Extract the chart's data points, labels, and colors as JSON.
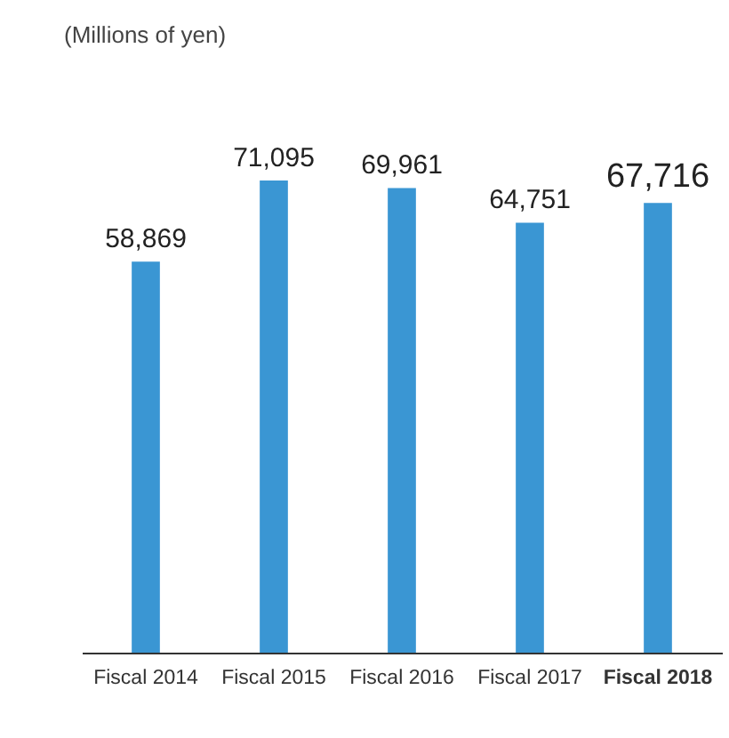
{
  "chart_data": {
    "type": "bar",
    "subtitle": "(Millions of yen)",
    "categories": [
      "Fiscal 2014",
      "Fiscal 2015",
      "Fiscal 2016",
      "Fiscal 2017",
      "Fiscal 2018"
    ],
    "values": [
      58869,
      71095,
      69961,
      64751,
      67716
    ],
    "value_labels": [
      "58,869",
      "71,095",
      "69,961",
      "64,751",
      "67,716"
    ],
    "color": "#3a96d3"
  }
}
